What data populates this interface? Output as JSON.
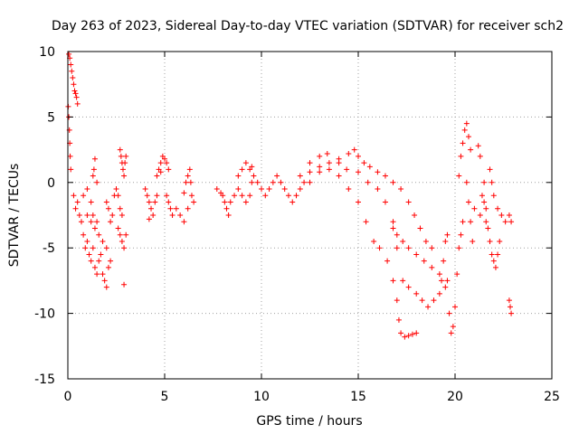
{
  "chart_data": {
    "type": "scatter",
    "title": "Day 263 of 2023, Sidereal Day-to-day VTEC variation (SDTVAR) for receiver sch2",
    "xlabel": "GPS time / hours",
    "ylabel": "SDTVAR / TECUs",
    "xlim": [
      0,
      25
    ],
    "ylim": [
      -15,
      10
    ],
    "xticks": [
      "0",
      "5",
      "10",
      "15",
      "20",
      "25"
    ],
    "xtick_values": [
      0,
      5,
      10,
      15,
      20,
      25
    ],
    "yticks": [
      "10",
      "5",
      "0",
      "-5",
      "-10",
      "-15"
    ],
    "ytick_values": [
      10,
      5,
      0,
      -5,
      -10,
      -15
    ],
    "grid": true,
    "marker": "+",
    "color": "#ff0000",
    "series": [
      {
        "name": "SDTVAR",
        "points": [
          [
            0.05,
            9.8
          ],
          [
            0.1,
            9.5
          ],
          [
            0.15,
            9.0
          ],
          [
            0.2,
            8.5
          ],
          [
            0.25,
            8.0
          ],
          [
            0.3,
            7.5
          ],
          [
            0.35,
            7.0
          ],
          [
            0.4,
            6.8
          ],
          [
            0.45,
            6.5
          ],
          [
            0.5,
            6.0
          ],
          [
            0.02,
            5.8
          ],
          [
            0.05,
            5.0
          ],
          [
            0.08,
            4.0
          ],
          [
            0.1,
            3.0
          ],
          [
            0.12,
            2.0
          ],
          [
            0.15,
            1.0
          ],
          [
            0.3,
            -1.0
          ],
          [
            0.4,
            -2.0
          ],
          [
            0.5,
            -1.5
          ],
          [
            0.6,
            -2.5
          ],
          [
            0.7,
            -3.0
          ],
          [
            0.8,
            -4.0
          ],
          [
            0.9,
            -5.0
          ],
          [
            1.0,
            -4.5
          ],
          [
            1.1,
            -5.5
          ],
          [
            1.2,
            -6.0
          ],
          [
            1.3,
            -5.0
          ],
          [
            1.4,
            -6.5
          ],
          [
            1.5,
            -7.0
          ],
          [
            1.6,
            -6.0
          ],
          [
            1.7,
            -5.5
          ],
          [
            1.8,
            -7.0
          ],
          [
            1.9,
            -7.5
          ],
          [
            2.0,
            -8.0
          ],
          [
            2.1,
            -6.5
          ],
          [
            2.2,
            -6.0
          ],
          [
            0.8,
            -1.0
          ],
          [
            1.0,
            -2.5
          ],
          [
            1.2,
            -3.0
          ],
          [
            1.4,
            -3.5
          ],
          [
            1.5,
            -3.0
          ],
          [
            1.6,
            -4.0
          ],
          [
            1.8,
            -4.5
          ],
          [
            2.0,
            -5.0
          ],
          [
            1.0,
            -0.5
          ],
          [
            1.2,
            -1.5
          ],
          [
            1.3,
            -2.5
          ],
          [
            1.5,
            0.0
          ],
          [
            1.3,
            0.5
          ],
          [
            1.35,
            1.0
          ],
          [
            1.4,
            1.8
          ],
          [
            2.0,
            -1.5
          ],
          [
            2.1,
            -2.0
          ],
          [
            2.2,
            -3.0
          ],
          [
            2.3,
            -2.5
          ],
          [
            2.4,
            -1.0
          ],
          [
            2.5,
            -0.5
          ],
          [
            2.6,
            -1.0
          ],
          [
            2.7,
            -2.0
          ],
          [
            2.8,
            -2.5
          ],
          [
            2.6,
            -3.5
          ],
          [
            2.7,
            -4.0
          ],
          [
            2.8,
            -4.5
          ],
          [
            2.9,
            -5.0
          ],
          [
            3.0,
            -4.0
          ],
          [
            2.7,
            2.5
          ],
          [
            2.75,
            2.0
          ],
          [
            2.8,
            1.5
          ],
          [
            2.85,
            1.0
          ],
          [
            2.9,
            0.5
          ],
          [
            2.95,
            1.5
          ],
          [
            3.0,
            2.0
          ],
          [
            2.9,
            -7.8
          ],
          [
            4.0,
            -0.5
          ],
          [
            4.1,
            -1.0
          ],
          [
            4.2,
            -1.5
          ],
          [
            4.3,
            -2.0
          ],
          [
            4.4,
            -2.5
          ],
          [
            4.5,
            -1.5
          ],
          [
            4.6,
            -1.0
          ],
          [
            4.2,
            -2.8
          ],
          [
            4.6,
            0.5
          ],
          [
            4.7,
            1.0
          ],
          [
            4.8,
            1.5
          ],
          [
            4.9,
            2.0
          ],
          [
            5.0,
            1.8
          ],
          [
            5.1,
            1.5
          ],
          [
            5.2,
            1.0
          ],
          [
            4.8,
            0.8
          ],
          [
            5.1,
            -1.0
          ],
          [
            5.2,
            -1.5
          ],
          [
            5.3,
            -2.0
          ],
          [
            5.4,
            -2.5
          ],
          [
            5.6,
            -2.0
          ],
          [
            5.8,
            -2.5
          ],
          [
            6.0,
            -3.0
          ],
          [
            6.2,
            -2.0
          ],
          [
            6.0,
            -0.8
          ],
          [
            6.1,
            0.0
          ],
          [
            6.2,
            0.5
          ],
          [
            6.3,
            1.0
          ],
          [
            6.35,
            0.0
          ],
          [
            6.4,
            -1.0
          ],
          [
            6.5,
            -1.5
          ],
          [
            7.7,
            -0.5
          ],
          [
            7.9,
            -0.8
          ],
          [
            8.0,
            -1.0
          ],
          [
            8.1,
            -1.5
          ],
          [
            8.2,
            -2.0
          ],
          [
            8.3,
            -2.5
          ],
          [
            8.4,
            -1.5
          ],
          [
            8.6,
            -1.0
          ],
          [
            8.8,
            -0.5
          ],
          [
            9.0,
            -1.0
          ],
          [
            9.2,
            -1.5
          ],
          [
            9.4,
            -1.0
          ],
          [
            9.5,
            0.0
          ],
          [
            9.6,
            0.5
          ],
          [
            9.8,
            0.0
          ],
          [
            10.0,
            -0.5
          ],
          [
            10.2,
            -1.0
          ],
          [
            10.4,
            -0.5
          ],
          [
            10.6,
            0.0
          ],
          [
            10.8,
            0.5
          ],
          [
            11.0,
            0.0
          ],
          [
            11.2,
            -0.5
          ],
          [
            11.4,
            -1.0
          ],
          [
            11.6,
            -1.5
          ],
          [
            11.8,
            -1.0
          ],
          [
            12.0,
            -0.5
          ],
          [
            12.2,
            0.0
          ],
          [
            9.0,
            1.0
          ],
          [
            9.2,
            1.5
          ],
          [
            9.4,
            1.0
          ],
          [
            9.5,
            1.2
          ],
          [
            8.8,
            0.5
          ],
          [
            12.5,
            0.8
          ],
          [
            13.0,
            1.2
          ],
          [
            13.5,
            1.5
          ],
          [
            14.0,
            1.8
          ],
          [
            14.5,
            2.2
          ],
          [
            14.8,
            2.5
          ],
          [
            15.0,
            2.0
          ],
          [
            15.3,
            1.5
          ],
          [
            15.6,
            1.2
          ],
          [
            16.0,
            0.8
          ],
          [
            16.4,
            0.5
          ],
          [
            16.8,
            0.0
          ],
          [
            17.2,
            -0.5
          ],
          [
            17.6,
            -1.5
          ],
          [
            17.9,
            -2.5
          ],
          [
            18.2,
            -3.5
          ],
          [
            18.5,
            -4.5
          ],
          [
            18.8,
            -5.0
          ],
          [
            12.0,
            0.5
          ],
          [
            12.5,
            1.5
          ],
          [
            13.0,
            2.0
          ],
          [
            13.4,
            2.2
          ],
          [
            14.0,
            1.5
          ],
          [
            14.4,
            1.0
          ],
          [
            15.0,
            0.8
          ],
          [
            15.5,
            0.0
          ],
          [
            16.0,
            -0.5
          ],
          [
            16.4,
            -1.5
          ],
          [
            16.8,
            -3.0
          ],
          [
            17.0,
            -4.0
          ],
          [
            17.3,
            -4.5
          ],
          [
            17.6,
            -5.0
          ],
          [
            18.0,
            -5.5
          ],
          [
            18.4,
            -6.0
          ],
          [
            18.8,
            -6.5
          ],
          [
            19.2,
            -7.0
          ],
          [
            19.6,
            -7.5
          ],
          [
            12.5,
            0.0
          ],
          [
            13.0,
            0.8
          ],
          [
            13.5,
            1.0
          ],
          [
            14.0,
            0.5
          ],
          [
            14.5,
            -0.5
          ],
          [
            15.0,
            -1.5
          ],
          [
            15.4,
            -3.0
          ],
          [
            15.8,
            -4.5
          ],
          [
            16.1,
            -5.0
          ],
          [
            16.5,
            -6.0
          ],
          [
            16.8,
            -7.5
          ],
          [
            17.0,
            -9.0
          ],
          [
            17.1,
            -10.5
          ],
          [
            17.2,
            -11.5
          ],
          [
            17.4,
            -11.8
          ],
          [
            17.6,
            -11.7
          ],
          [
            17.8,
            -11.6
          ],
          [
            18.0,
            -11.5
          ],
          [
            16.8,
            -3.5
          ],
          [
            17.0,
            -5.0
          ],
          [
            17.3,
            -7.5
          ],
          [
            17.6,
            -8.0
          ],
          [
            18.0,
            -8.5
          ],
          [
            18.3,
            -9.0
          ],
          [
            18.6,
            -9.5
          ],
          [
            18.9,
            -9.0
          ],
          [
            19.2,
            -8.5
          ],
          [
            19.5,
            -8.0
          ],
          [
            19.7,
            -10.0
          ],
          [
            19.8,
            -11.5
          ],
          [
            19.9,
            -11.0
          ],
          [
            20.0,
            -9.5
          ],
          [
            20.1,
            -7.0
          ],
          [
            20.2,
            -5.0
          ],
          [
            20.3,
            -4.0
          ],
          [
            20.4,
            -3.0
          ],
          [
            19.3,
            -7.5
          ],
          [
            19.4,
            -6.0
          ],
          [
            19.5,
            -4.5
          ],
          [
            19.6,
            -4.0
          ],
          [
            20.2,
            0.5
          ],
          [
            20.3,
            2.0
          ],
          [
            20.4,
            3.0
          ],
          [
            20.5,
            4.0
          ],
          [
            20.6,
            4.5
          ],
          [
            20.7,
            3.5
          ],
          [
            20.8,
            2.5
          ],
          [
            20.6,
            0.0
          ],
          [
            20.7,
            -1.5
          ],
          [
            20.8,
            -3.0
          ],
          [
            20.9,
            -4.5
          ],
          [
            21.0,
            -2.0
          ],
          [
            21.3,
            -2.5
          ],
          [
            21.4,
            -1.0
          ],
          [
            21.5,
            0.0
          ],
          [
            21.6,
            -2.0
          ],
          [
            21.7,
            -3.5
          ],
          [
            21.8,
            -4.5
          ],
          [
            21.9,
            -5.5
          ],
          [
            22.0,
            -6.0
          ],
          [
            22.1,
            -6.5
          ],
          [
            22.2,
            -5.5
          ],
          [
            22.3,
            -4.5
          ],
          [
            21.2,
            2.8
          ],
          [
            21.3,
            2.0
          ],
          [
            21.5,
            -1.5
          ],
          [
            21.6,
            -3.0
          ],
          [
            21.8,
            1.0
          ],
          [
            21.9,
            0.0
          ],
          [
            22.0,
            -1.0
          ],
          [
            22.2,
            -2.0
          ],
          [
            22.4,
            -2.5
          ],
          [
            22.6,
            -3.0
          ],
          [
            22.8,
            -2.5
          ],
          [
            22.9,
            -3.0
          ],
          [
            22.8,
            -9.0
          ],
          [
            22.85,
            -9.5
          ],
          [
            22.9,
            -10.0
          ]
        ]
      }
    ]
  }
}
